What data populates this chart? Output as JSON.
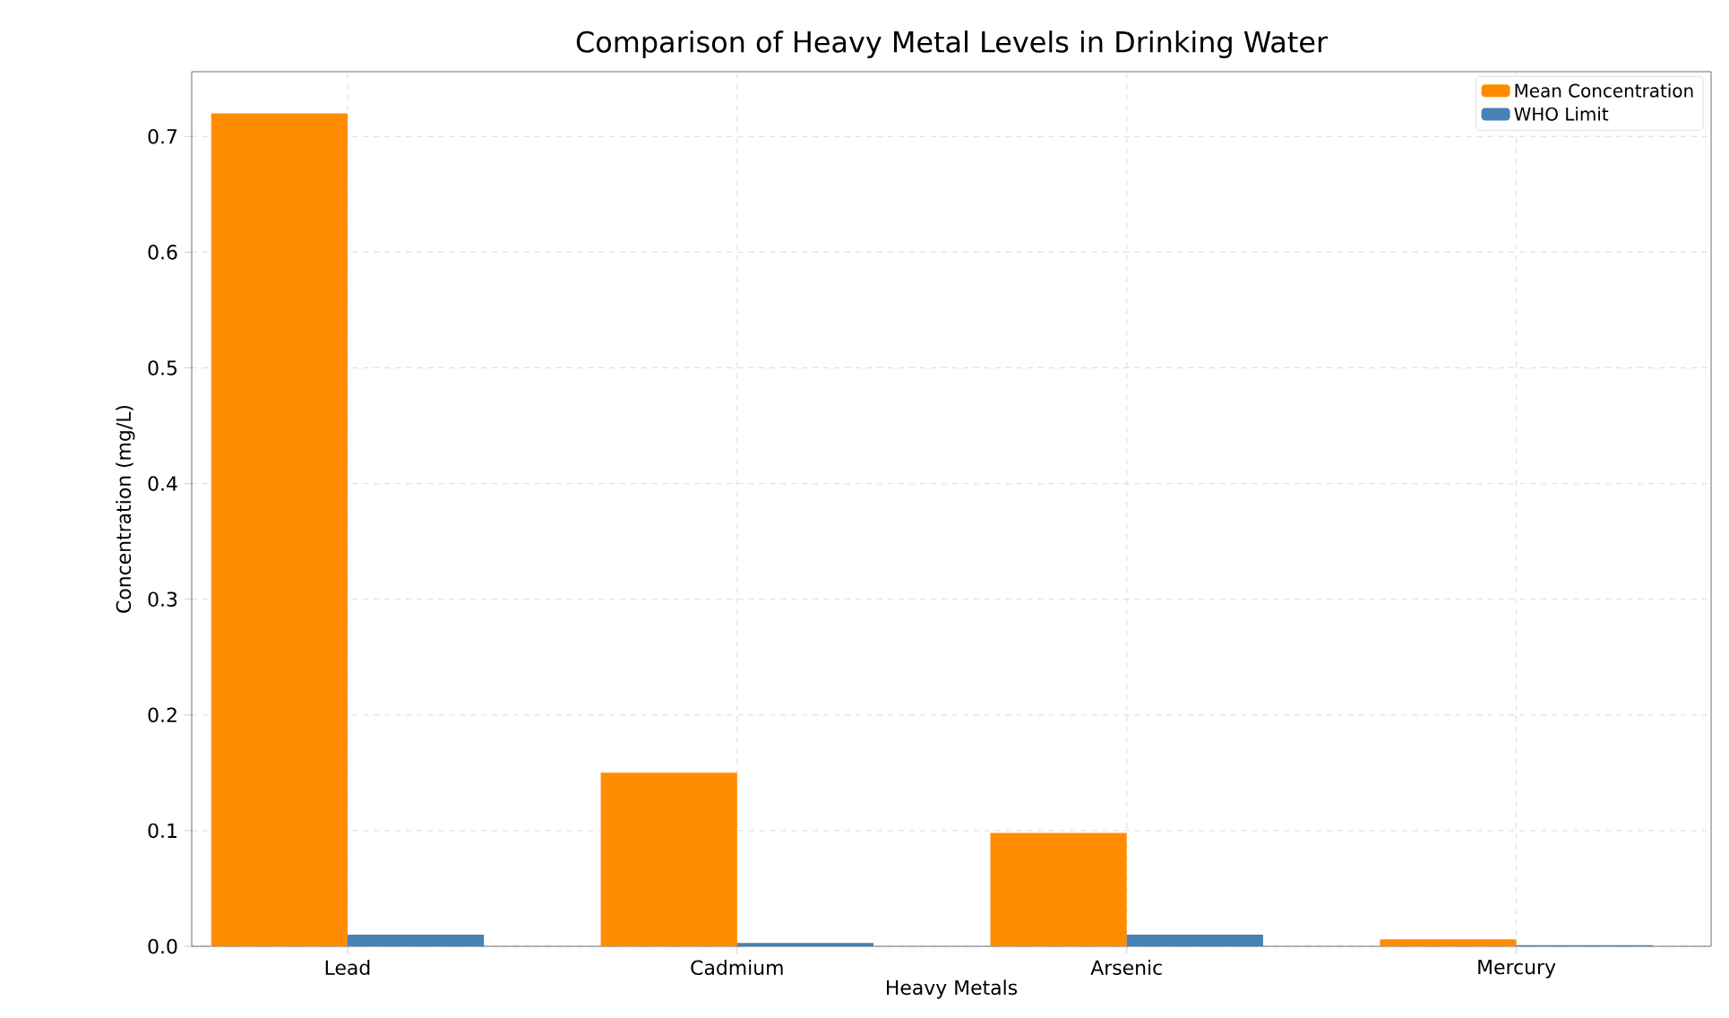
{
  "chart_data": {
    "type": "bar",
    "title": "Comparison of Heavy Metal Levels in Drinking Water",
    "xlabel": "Heavy Metals",
    "ylabel": "Concentration (mg/L)",
    "categories": [
      "Lead",
      "Cadmium",
      "Arsenic",
      "Mercury"
    ],
    "series": [
      {
        "name": "Mean Concentration",
        "color": "#ff8c00",
        "values": [
          0.72,
          0.15,
          0.098,
          0.006
        ]
      },
      {
        "name": "WHO Limit",
        "color": "#4682b4",
        "values": [
          0.01,
          0.003,
          0.01,
          0.001
        ]
      }
    ],
    "ylim": [
      0,
      0.756
    ],
    "yticks": [
      {
        "value": 0,
        "label": "0.0"
      },
      0.1,
      0.2,
      0.3,
      0.4,
      0.5,
      0.6,
      0.7
    ],
    "grid": true,
    "legend": "top right"
  }
}
